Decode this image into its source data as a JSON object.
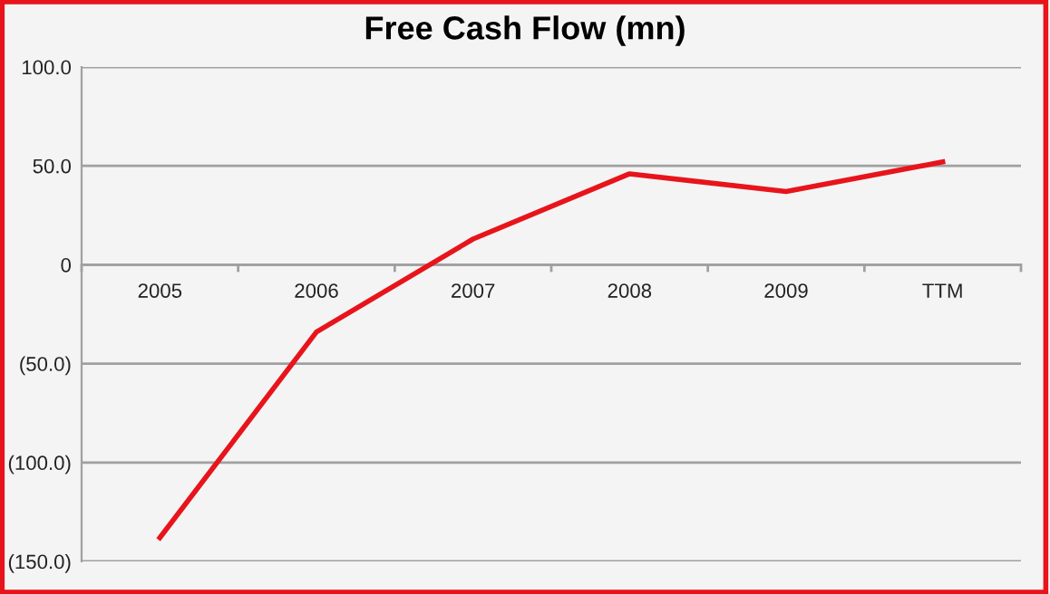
{
  "chart_data": {
    "type": "line",
    "title": "Free Cash Flow (mn)",
    "categories": [
      "2005",
      "2006",
      "2007",
      "2008",
      "2009",
      "TTM"
    ],
    "series": [
      {
        "color": "#e8141b",
        "values": [
          -138,
          -34,
          13,
          46,
          37,
          52
        ]
      }
    ],
    "ylim": [
      -150,
      100
    ],
    "yticks": [
      {
        "value": 100,
        "label": "100.0"
      },
      {
        "value": 50,
        "label": "50.0"
      },
      0,
      {
        "value": -50,
        "label": "(50.0)"
      },
      {
        "value": -100,
        "label": "(100.0)"
      },
      {
        "value": -150,
        "label": "(150.0)"
      }
    ],
    "grid": "y",
    "marker": "none",
    "line_style": "solid"
  }
}
